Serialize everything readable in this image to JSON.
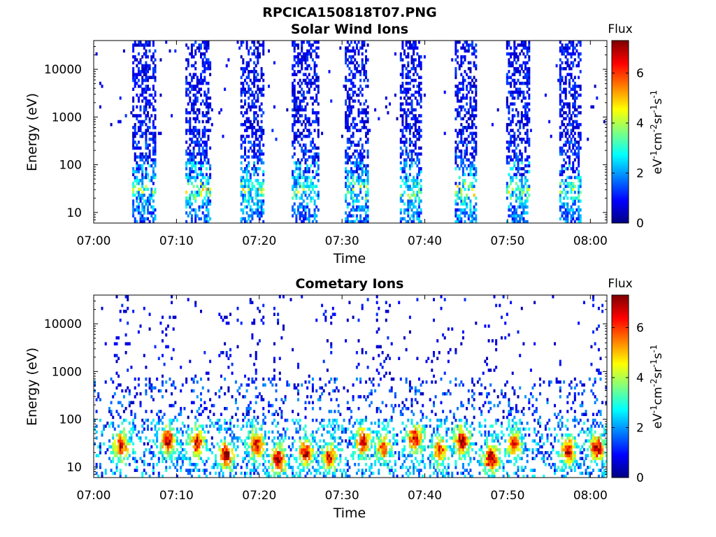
{
  "figure_title": "RPCICA150818T07.PNG",
  "colorbar_label_text": "Flux",
  "colorbar_unit_parts": [
    "eV",
    "-1",
    "cm",
    "-2",
    "sr",
    "-1",
    "s",
    "-1"
  ],
  "colorbar_colormap": "jet",
  "chart_data": [
    {
      "type": "heatmap",
      "title": "Solar Wind Ions",
      "xlabel": "Time",
      "ylabel": "Energy (eV)",
      "x_range": [
        "07:00",
        "08:02"
      ],
      "x_ticks": [
        "07:00",
        "07:10",
        "07:20",
        "07:30",
        "07:40",
        "07:50",
        "08:00"
      ],
      "y_scale": "log",
      "y_range": [
        6,
        40000
      ],
      "y_ticks": [
        10,
        100,
        1000,
        10000
      ],
      "y_tick_labels": [
        "10",
        "100",
        "1000",
        "10000"
      ],
      "colorbar": {
        "label": "Flux",
        "range": [
          0,
          7.3
        ],
        "ticks": [
          0,
          2,
          4,
          6
        ]
      },
      "grid": false,
      "sweeps": [
        {
          "start": "07:04.7",
          "end": "07:07.6",
          "peak_energy": 30,
          "peak_flux": 4.5
        },
        {
          "start": "07:11.0",
          "end": "07:14.2",
          "peak_energy": 30,
          "peak_flux": 5.0
        },
        {
          "start": "07:17.8",
          "end": "07:20.6",
          "peak_energy": 30,
          "peak_flux": 4.8
        },
        {
          "start": "07:24.0",
          "end": "07:27.3",
          "peak_energy": 30,
          "peak_flux": 4.5
        },
        {
          "start": "07:30.3",
          "end": "07:33.2",
          "peak_energy": 30,
          "peak_flux": 4.7
        },
        {
          "start": "07:36.9",
          "end": "07:39.7",
          "peak_energy": 30,
          "peak_flux": 4.8
        },
        {
          "start": "07:43.6",
          "end": "07:46.2",
          "peak_energy": 30,
          "peak_flux": 5.2
        },
        {
          "start": "07:49.9",
          "end": "07:52.8",
          "peak_energy": 30,
          "peak_flux": 4.6
        },
        {
          "start": "07:56.3",
          "end": "07:58.9",
          "peak_energy": 30,
          "peak_flux": 4.4
        }
      ]
    },
    {
      "type": "heatmap",
      "title": "Cometary Ions",
      "xlabel": "Time",
      "ylabel": "Energy (eV)",
      "x_range": [
        "07:00",
        "08:02"
      ],
      "x_ticks": [
        "07:00",
        "07:10",
        "07:20",
        "07:30",
        "07:40",
        "07:50",
        "08:00"
      ],
      "y_scale": "log",
      "y_range": [
        6,
        40000
      ],
      "y_ticks": [
        10,
        100,
        1000,
        10000
      ],
      "y_tick_labels": [
        "10",
        "100",
        "1000",
        "10000"
      ],
      "colorbar": {
        "label": "Flux",
        "range": [
          0,
          7.3
        ],
        "ticks": [
          0,
          2,
          4,
          6
        ]
      },
      "grid": false,
      "hot_features": [
        {
          "time": "07:03.3",
          "energy": 28,
          "flux": 6.5
        },
        {
          "time": "07:09.0",
          "energy": 35,
          "flux": 6.8
        },
        {
          "time": "07:12.5",
          "energy": 32,
          "flux": 6.6
        },
        {
          "time": "07:16.0",
          "energy": 18,
          "flux": 7.0
        },
        {
          "time": "07:19.7",
          "energy": 30,
          "flux": 6.5
        },
        {
          "time": "07:22.3",
          "energy": 14,
          "flux": 7.1
        },
        {
          "time": "07:25.6",
          "energy": 20,
          "flux": 6.9
        },
        {
          "time": "07:28.5",
          "energy": 16,
          "flux": 6.3
        },
        {
          "time": "07:32.5",
          "energy": 35,
          "flux": 6.7
        },
        {
          "time": "07:35.0",
          "energy": 25,
          "flux": 5.8
        },
        {
          "time": "07:38.8",
          "energy": 40,
          "flux": 6.6
        },
        {
          "time": "07:41.8",
          "energy": 22,
          "flux": 6.2
        },
        {
          "time": "07:44.5",
          "energy": 35,
          "flux": 7.1
        },
        {
          "time": "07:48.0",
          "energy": 15,
          "flux": 7.2
        },
        {
          "time": "07:50.8",
          "energy": 30,
          "flux": 6.0
        },
        {
          "time": "07:57.3",
          "energy": 22,
          "flux": 6.8
        },
        {
          "time": "08:00.8",
          "energy": 25,
          "flux": 6.9
        }
      ]
    }
  ]
}
